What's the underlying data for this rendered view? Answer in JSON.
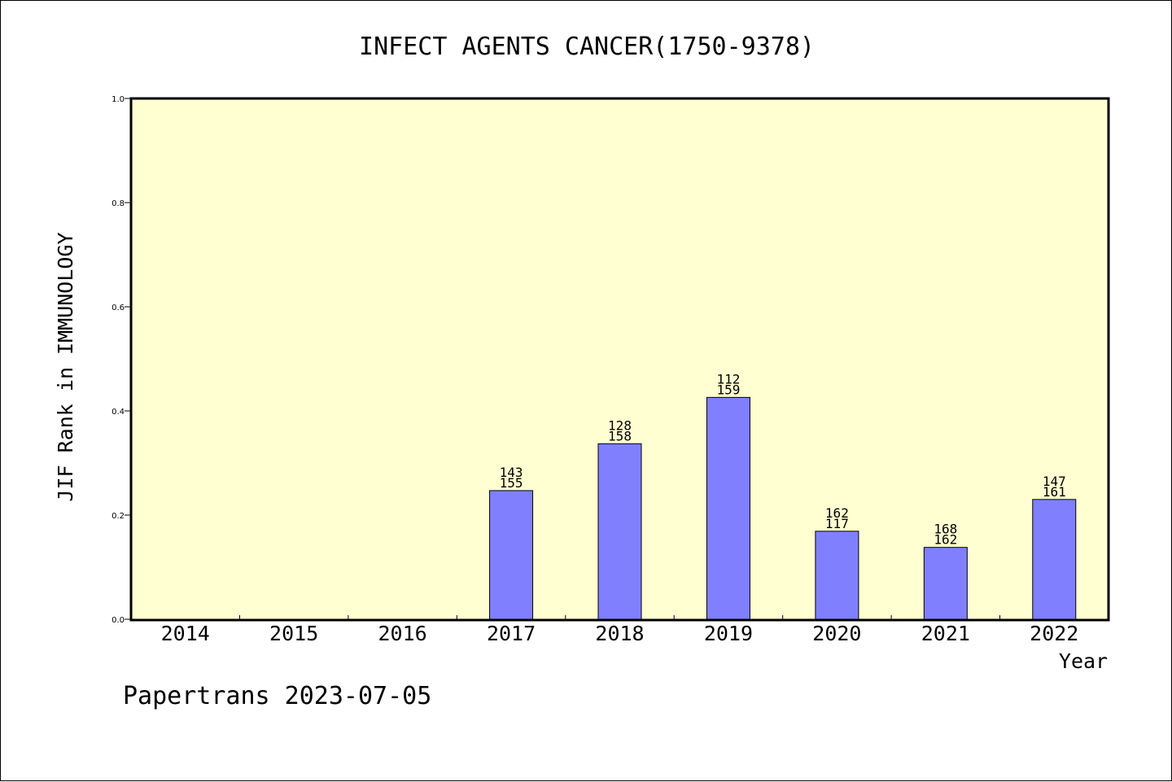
{
  "chart_data": {
    "type": "bar",
    "title": "INFECT AGENTS CANCER(1750-9378)",
    "xlabel": "Year",
    "ylabel": "JIF Rank in IMMUNOLOGY",
    "ylim": [
      0,
      1.0
    ],
    "yticks": [
      "0.0",
      "0.2",
      "0.4",
      "0.6",
      "0.8",
      "1.0"
    ],
    "categories": [
      "2014",
      "2015",
      "2016",
      "2017",
      "2018",
      "2019",
      "2020",
      "2021",
      "2022"
    ],
    "values": [
      null,
      null,
      null,
      0.247,
      0.337,
      0.426,
      0.169,
      0.138,
      0.23
    ],
    "label_top": [
      null,
      null,
      null,
      "143",
      "128",
      "112",
      "162",
      "168",
      "147"
    ],
    "label_bottom": [
      null,
      null,
      null,
      "155",
      "158",
      "159",
      "117",
      "162",
      "161"
    ],
    "grid": false,
    "colors": {
      "plot_background": "#ffffd2",
      "bar_fill": "#8080ff",
      "bar_stroke": "#000000",
      "axis": "#000000"
    }
  },
  "footer": {
    "credit": "Papertrans 2023-07-05"
  }
}
